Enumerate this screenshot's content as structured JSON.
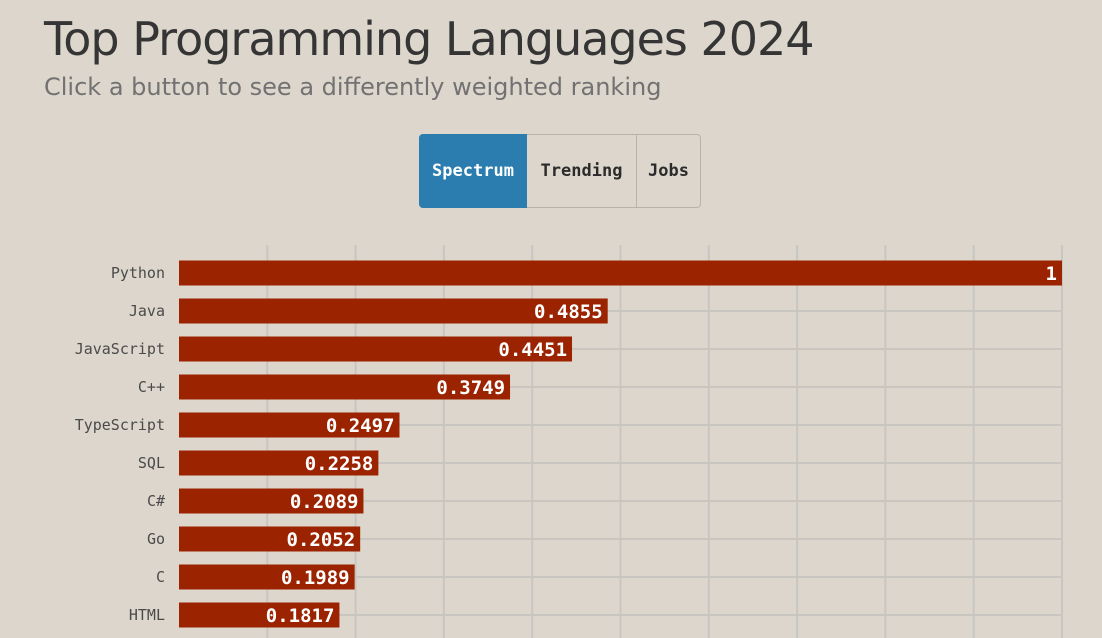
{
  "header": {
    "title": "Top Programming Languages 2024",
    "subtitle": "Click a button to see a differently weighted ranking"
  },
  "controls": {
    "buttons": [
      {
        "label": "Spectrum",
        "active": true
      },
      {
        "label": "Trending",
        "active": false
      },
      {
        "label": "Jobs",
        "active": false
      }
    ],
    "active_color": "#2a7dae"
  },
  "colors": {
    "background": "#ddd6cc",
    "bar": "#9b2300",
    "grid": "#c9c6c2"
  },
  "chart_data": {
    "type": "bar",
    "orientation": "horizontal",
    "categories": [
      "Python",
      "Java",
      "JavaScript",
      "C++",
      "TypeScript",
      "SQL",
      "C#",
      "Go",
      "C",
      "HTML"
    ],
    "values": [
      1,
      0.4855,
      0.4451,
      0.3749,
      0.2497,
      0.2258,
      0.2089,
      0.2052,
      0.1989,
      0.1817
    ],
    "value_labels": [
      "1",
      "0.4855",
      "0.4451",
      "0.3749",
      "0.2497",
      "0.2258",
      "0.2089",
      "0.2052",
      "0.1989",
      "0.1817"
    ],
    "xlim": [
      0,
      1
    ],
    "grid": true,
    "xlabel": "",
    "ylabel": ""
  }
}
